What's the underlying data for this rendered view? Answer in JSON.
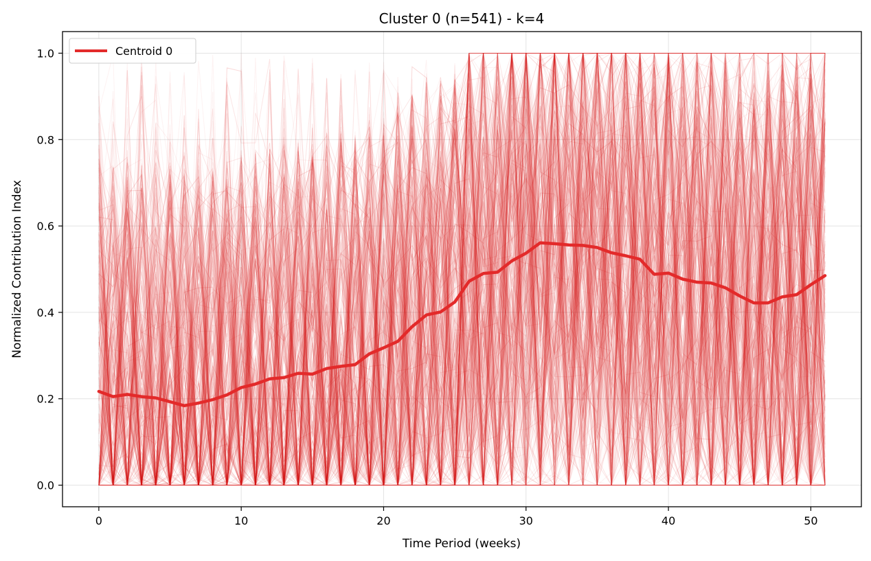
{
  "chart_data": {
    "type": "line",
    "title": "Cluster 0 (n=541) - k=4",
    "xlabel": "Time Period (weeks)",
    "ylabel": "Normalized Contribution Index",
    "xlim": [
      -2.55,
      53.55
    ],
    "ylim": [
      -0.05,
      1.05
    ],
    "x_ticks": [
      0,
      10,
      20,
      30,
      40,
      50
    ],
    "y_ticks": [
      0.0,
      0.2,
      0.4,
      0.6,
      0.8,
      1.0
    ],
    "x_tick_labels": [
      "0",
      "10",
      "20",
      "30",
      "40",
      "50"
    ],
    "y_tick_labels": [
      "0.0",
      "0.2",
      "0.4",
      "0.6",
      "0.8",
      "1.0"
    ],
    "grid": true,
    "legend_position": "top-left",
    "centroid_color": "#e32a2a",
    "member_color": "#e32a2a",
    "member_count": 541,
    "series": [
      {
        "name": "Centroid 0",
        "x": [
          0,
          1,
          2,
          3,
          4,
          5,
          6,
          7,
          8,
          9,
          10,
          11,
          12,
          13,
          14,
          15,
          16,
          17,
          18,
          19,
          20,
          21,
          22,
          23,
          24,
          25,
          26,
          27,
          28,
          29,
          30,
          31,
          32,
          33,
          34,
          35,
          36,
          37,
          38,
          39,
          40,
          41,
          42,
          43,
          44,
          45,
          46,
          47,
          48,
          49,
          50,
          51
        ],
        "values": [
          0.217,
          0.205,
          0.21,
          0.205,
          0.202,
          0.193,
          0.184,
          0.19,
          0.198,
          0.209,
          0.226,
          0.234,
          0.246,
          0.249,
          0.259,
          0.257,
          0.27,
          0.275,
          0.279,
          0.304,
          0.318,
          0.333,
          0.367,
          0.394,
          0.401,
          0.424,
          0.472,
          0.49,
          0.493,
          0.519,
          0.537,
          0.561,
          0.559,
          0.556,
          0.555,
          0.55,
          0.538,
          0.531,
          0.523,
          0.488,
          0.491,
          0.477,
          0.47,
          0.468,
          0.457,
          0.438,
          0.422,
          0.422,
          0.436,
          0.441,
          0.464,
          0.485
        ]
      }
    ]
  }
}
